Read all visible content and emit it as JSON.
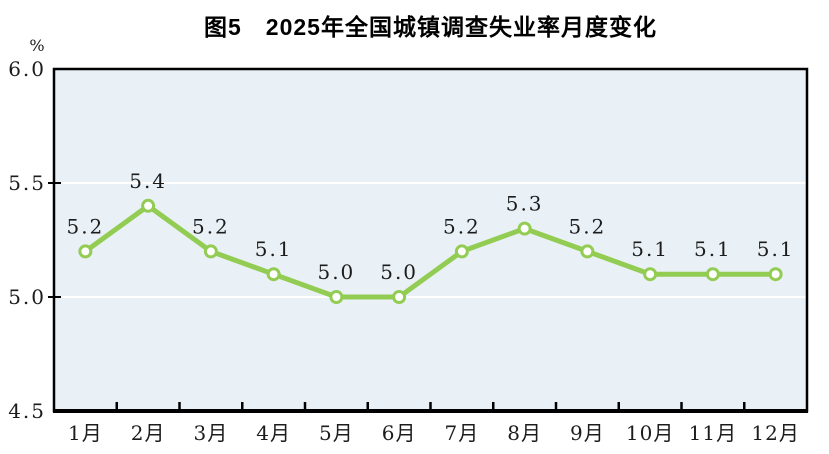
{
  "chart_data": {
    "type": "line",
    "title": "图5　2025年全国城镇调查失业率月度变化",
    "unit_label": "%",
    "categories": [
      "1月",
      "2月",
      "3月",
      "4月",
      "5月",
      "6月",
      "7月",
      "8月",
      "9月",
      "10月",
      "11月",
      "12月"
    ],
    "values": [
      5.2,
      5.4,
      5.2,
      5.1,
      5.0,
      5.0,
      5.2,
      5.3,
      5.2,
      5.1,
      5.1,
      5.1
    ],
    "ylim": [
      4.5,
      6.0
    ],
    "ytick_step": 0.5,
    "ytick_labels": [
      "4.5",
      "5.0",
      "5.5",
      "6.0"
    ],
    "grid": "horizontal",
    "legend_position": "none",
    "data_labels": true,
    "colors": {
      "line": "#92CC52",
      "marker_fill": "#FFFFFF",
      "plot_bg": "#E9F1F6",
      "grid": "#FFFFFF",
      "axis": "#000000",
      "text": "#1C1C1C",
      "title": "#000000"
    }
  }
}
